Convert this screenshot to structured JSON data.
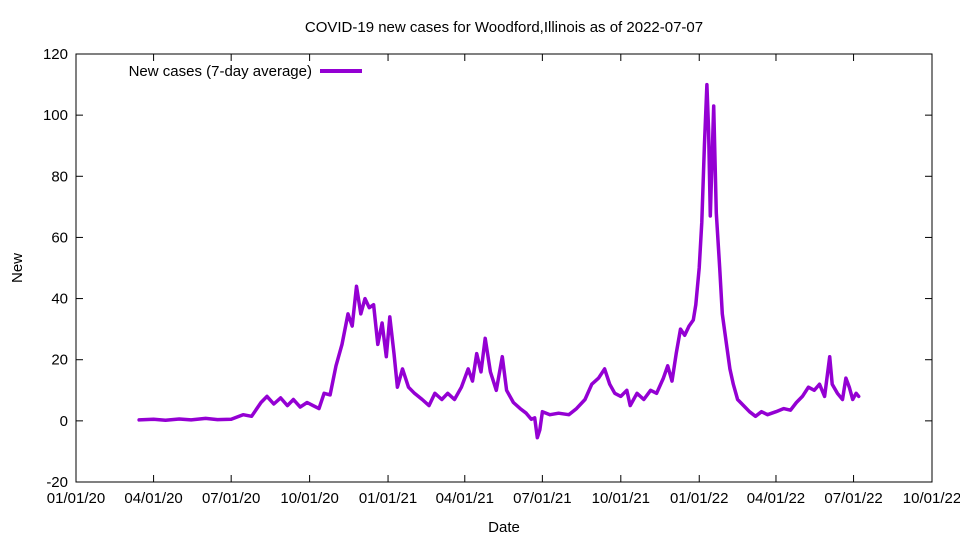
{
  "chart_data": {
    "type": "line",
    "title": "COVID-19 new cases for Woodford,Illinois as of 2022-07-07",
    "xlabel": "Date",
    "ylabel": "New",
    "x_type": "date",
    "xlim": [
      "2020-01-01",
      "2022-10-01"
    ],
    "ylim": [
      -20,
      120
    ],
    "x_ticks": [
      {
        "date": "2020-01-01",
        "label": "01/01/20"
      },
      {
        "date": "2020-04-01",
        "label": "04/01/20"
      },
      {
        "date": "2020-07-01",
        "label": "07/01/20"
      },
      {
        "date": "2020-10-01",
        "label": "10/01/20"
      },
      {
        "date": "2021-01-01",
        "label": "01/01/21"
      },
      {
        "date": "2021-04-01",
        "label": "04/01/21"
      },
      {
        "date": "2021-07-01",
        "label": "07/01/21"
      },
      {
        "date": "2021-10-01",
        "label": "10/01/21"
      },
      {
        "date": "2022-01-01",
        "label": "01/01/22"
      },
      {
        "date": "2022-04-01",
        "label": "04/01/22"
      },
      {
        "date": "2022-07-01",
        "label": "07/01/22"
      },
      {
        "date": "2022-10-01",
        "label": "10/01/22"
      }
    ],
    "y_ticks": [
      -20,
      0,
      20,
      40,
      60,
      80,
      100,
      120
    ],
    "legend_position": "top-left",
    "grid": false,
    "series": [
      {
        "name": "New cases (7-day average)",
        "color": "#9400d3",
        "points": [
          [
            "2020-03-15",
            0.3
          ],
          [
            "2020-04-01",
            0.5
          ],
          [
            "2020-04-15",
            0.2
          ],
          [
            "2020-05-01",
            0.6
          ],
          [
            "2020-05-15",
            0.3
          ],
          [
            "2020-06-01",
            0.8
          ],
          [
            "2020-06-15",
            0.4
          ],
          [
            "2020-07-01",
            0.5
          ],
          [
            "2020-07-15",
            2.0
          ],
          [
            "2020-07-25",
            1.5
          ],
          [
            "2020-08-05",
            6.0
          ],
          [
            "2020-08-12",
            8.0
          ],
          [
            "2020-08-20",
            5.5
          ],
          [
            "2020-08-28",
            7.5
          ],
          [
            "2020-09-05",
            5.0
          ],
          [
            "2020-09-12",
            7.0
          ],
          [
            "2020-09-20",
            4.5
          ],
          [
            "2020-09-28",
            6.0
          ],
          [
            "2020-10-05",
            5.0
          ],
          [
            "2020-10-12",
            4.0
          ],
          [
            "2020-10-18",
            9.0
          ],
          [
            "2020-10-25",
            8.5
          ],
          [
            "2020-11-01",
            18.0
          ],
          [
            "2020-11-08",
            25.0
          ],
          [
            "2020-11-15",
            35.0
          ],
          [
            "2020-11-20",
            31.0
          ],
          [
            "2020-11-25",
            44.0
          ],
          [
            "2020-11-30",
            35.0
          ],
          [
            "2020-12-05",
            40.0
          ],
          [
            "2020-12-10",
            37.0
          ],
          [
            "2020-12-15",
            38.0
          ],
          [
            "2020-12-20",
            25.0
          ],
          [
            "2020-12-25",
            32.0
          ],
          [
            "2020-12-30",
            21.0
          ],
          [
            "2021-01-03",
            34.0
          ],
          [
            "2021-01-08",
            22.0
          ],
          [
            "2021-01-12",
            11.0
          ],
          [
            "2021-01-18",
            17.0
          ],
          [
            "2021-01-25",
            11.0
          ],
          [
            "2021-02-01",
            9.0
          ],
          [
            "2021-02-10",
            7.0
          ],
          [
            "2021-02-18",
            5.0
          ],
          [
            "2021-02-25",
            9.0
          ],
          [
            "2021-03-05",
            7.0
          ],
          [
            "2021-03-12",
            9.0
          ],
          [
            "2021-03-20",
            7.0
          ],
          [
            "2021-03-28",
            11.0
          ],
          [
            "2021-04-05",
            17.0
          ],
          [
            "2021-04-10",
            13.0
          ],
          [
            "2021-04-15",
            22.0
          ],
          [
            "2021-04-20",
            16.0
          ],
          [
            "2021-04-25",
            27.0
          ],
          [
            "2021-05-01",
            16.0
          ],
          [
            "2021-05-08",
            10.0
          ],
          [
            "2021-05-15",
            21.0
          ],
          [
            "2021-05-20",
            10.0
          ],
          [
            "2021-05-28",
            6.0
          ],
          [
            "2021-06-05",
            4.0
          ],
          [
            "2021-06-12",
            2.5
          ],
          [
            "2021-06-18",
            0.5
          ],
          [
            "2021-06-22",
            1.0
          ],
          [
            "2021-06-25",
            -5.5
          ],
          [
            "2021-06-28",
            -3.0
          ],
          [
            "2021-07-01",
            3.0
          ],
          [
            "2021-07-10",
            2.0
          ],
          [
            "2021-07-20",
            2.5
          ],
          [
            "2021-08-01",
            2.0
          ],
          [
            "2021-08-10",
            4.0
          ],
          [
            "2021-08-20",
            7.0
          ],
          [
            "2021-08-28",
            12.0
          ],
          [
            "2021-09-05",
            14.0
          ],
          [
            "2021-09-12",
            17.0
          ],
          [
            "2021-09-18",
            12.0
          ],
          [
            "2021-09-24",
            9.0
          ],
          [
            "2021-10-01",
            8.0
          ],
          [
            "2021-10-08",
            10.0
          ],
          [
            "2021-10-12",
            5.0
          ],
          [
            "2021-10-20",
            9.0
          ],
          [
            "2021-10-28",
            7.0
          ],
          [
            "2021-11-05",
            10.0
          ],
          [
            "2021-11-12",
            9.0
          ],
          [
            "2021-11-20",
            14.0
          ],
          [
            "2021-11-25",
            18.0
          ],
          [
            "2021-11-30",
            13.0
          ],
          [
            "2021-12-05",
            22.0
          ],
          [
            "2021-12-10",
            30.0
          ],
          [
            "2021-12-15",
            28.0
          ],
          [
            "2021-12-20",
            31.0
          ],
          [
            "2021-12-25",
            33.0
          ],
          [
            "2021-12-28",
            38.0
          ],
          [
            "2022-01-01",
            50.0
          ],
          [
            "2022-01-04",
            65.0
          ],
          [
            "2022-01-07",
            90.0
          ],
          [
            "2022-01-10",
            110.0
          ],
          [
            "2022-01-12",
            95.0
          ],
          [
            "2022-01-14",
            67.0
          ],
          [
            "2022-01-16",
            85.0
          ],
          [
            "2022-01-18",
            103.0
          ],
          [
            "2022-01-21",
            68.0
          ],
          [
            "2022-01-25",
            50.0
          ],
          [
            "2022-01-28",
            35.0
          ],
          [
            "2022-02-02",
            25.0
          ],
          [
            "2022-02-06",
            17.0
          ],
          [
            "2022-02-10",
            12.0
          ],
          [
            "2022-02-15",
            7.0
          ],
          [
            "2022-02-22",
            5.0
          ],
          [
            "2022-03-01",
            3.0
          ],
          [
            "2022-03-08",
            1.5
          ],
          [
            "2022-03-15",
            3.0
          ],
          [
            "2022-03-22",
            2.0
          ],
          [
            "2022-04-01",
            3.0
          ],
          [
            "2022-04-10",
            4.0
          ],
          [
            "2022-04-18",
            3.5
          ],
          [
            "2022-04-25",
            6.0
          ],
          [
            "2022-05-02",
            8.0
          ],
          [
            "2022-05-09",
            11.0
          ],
          [
            "2022-05-16",
            10.0
          ],
          [
            "2022-05-22",
            12.0
          ],
          [
            "2022-05-28",
            8.0
          ],
          [
            "2022-06-03",
            21.0
          ],
          [
            "2022-06-06",
            12.0
          ],
          [
            "2022-06-12",
            9.0
          ],
          [
            "2022-06-18",
            7.0
          ],
          [
            "2022-06-22",
            14.0
          ],
          [
            "2022-06-26",
            11.0
          ],
          [
            "2022-06-30",
            7.0
          ],
          [
            "2022-07-04",
            9.0
          ],
          [
            "2022-07-07",
            8.0
          ]
        ]
      }
    ]
  }
}
